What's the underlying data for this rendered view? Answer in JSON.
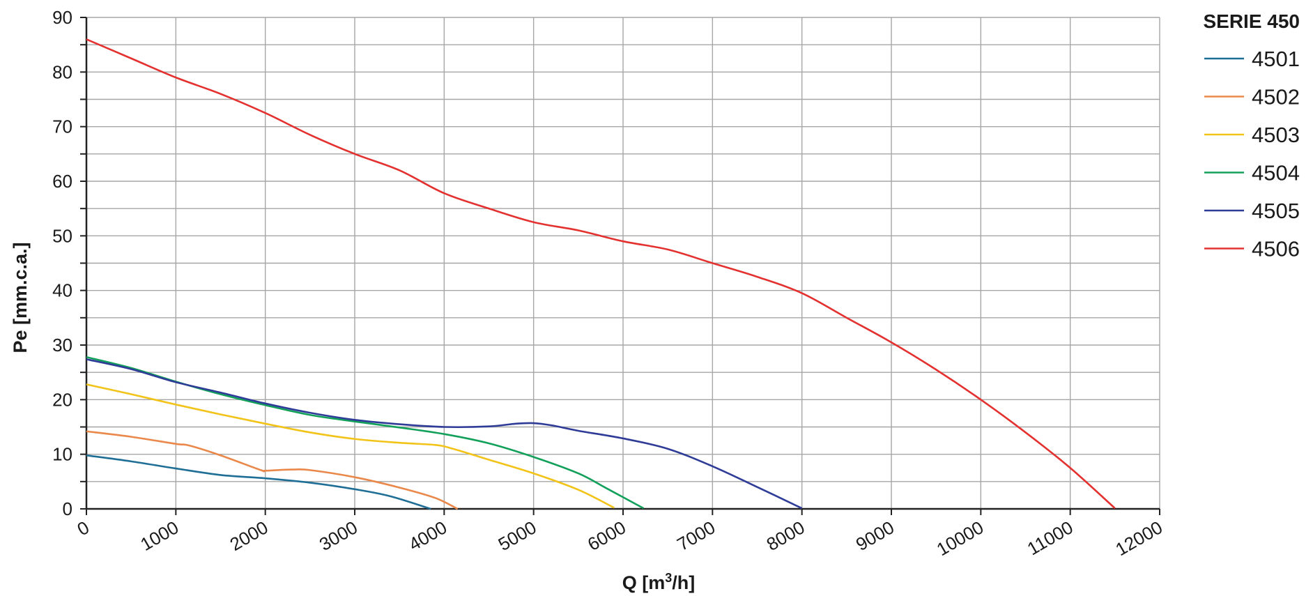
{
  "chart_data": {
    "type": "line",
    "title": "",
    "xlabel": "Q [m³/h]",
    "ylabel": "Pe [mm.c.a.]",
    "xlim": [
      0,
      12000
    ],
    "ylim": [
      0,
      90
    ],
    "x_ticks": [
      "0",
      "1000",
      "2000",
      "3000",
      "4000",
      "5000",
      "6000",
      "7000",
      "8000",
      "9000",
      "10000",
      "11000",
      "12000"
    ],
    "y_ticks": [
      "0",
      "10",
      "20",
      "30",
      "40",
      "50",
      "60",
      "70",
      "80",
      "90"
    ],
    "grid": true,
    "legend": {
      "title": "SERIE 450",
      "position": "right"
    },
    "series": [
      {
        "name": "4501",
        "color": "#1f6e96",
        "points": [
          [
            0,
            9.8
          ],
          [
            500,
            8.7
          ],
          [
            1000,
            7.4
          ],
          [
            1500,
            6.2
          ],
          [
            2000,
            5.6
          ],
          [
            2500,
            4.8
          ],
          [
            3000,
            3.6
          ],
          [
            3400,
            2.3
          ],
          [
            3850,
            0
          ]
        ]
      },
      {
        "name": "4502",
        "color": "#e9884a",
        "points": [
          [
            0,
            14.2
          ],
          [
            500,
            13.2
          ],
          [
            1000,
            11.9
          ],
          [
            1150,
            11.6
          ],
          [
            1500,
            9.8
          ],
          [
            1950,
            7.1
          ],
          [
            2000,
            7.0
          ],
          [
            2300,
            7.2
          ],
          [
            2500,
            7.1
          ],
          [
            3000,
            5.8
          ],
          [
            3500,
            3.9
          ],
          [
            3900,
            2.0
          ],
          [
            4150,
            0
          ]
        ]
      },
      {
        "name": "4503",
        "color": "#f2c318",
        "points": [
          [
            0,
            22.8
          ],
          [
            500,
            21.0
          ],
          [
            1000,
            19.1
          ],
          [
            1500,
            17.3
          ],
          [
            2000,
            15.6
          ],
          [
            2500,
            14.0
          ],
          [
            3000,
            12.8
          ],
          [
            3500,
            12.1
          ],
          [
            3900,
            11.7
          ],
          [
            4100,
            11.0
          ],
          [
            4500,
            9.0
          ],
          [
            5000,
            6.5
          ],
          [
            5500,
            3.5
          ],
          [
            5900,
            0.2
          ]
        ]
      },
      {
        "name": "4504",
        "color": "#12a05a",
        "points": [
          [
            0,
            27.8
          ],
          [
            500,
            25.8
          ],
          [
            1000,
            23.3
          ],
          [
            1500,
            21.0
          ],
          [
            2000,
            19.0
          ],
          [
            2500,
            17.2
          ],
          [
            3000,
            16.0
          ],
          [
            3500,
            14.9
          ],
          [
            4000,
            13.7
          ],
          [
            4500,
            12.0
          ],
          [
            5000,
            9.5
          ],
          [
            5500,
            6.5
          ],
          [
            5800,
            3.9
          ],
          [
            6230,
            0.1
          ]
        ]
      },
      {
        "name": "4505",
        "color": "#2f3c97",
        "points": [
          [
            0,
            27.4
          ],
          [
            500,
            25.6
          ],
          [
            1000,
            23.2
          ],
          [
            1500,
            21.3
          ],
          [
            2000,
            19.3
          ],
          [
            2500,
            17.6
          ],
          [
            3000,
            16.3
          ],
          [
            3500,
            15.5
          ],
          [
            4000,
            15.0
          ],
          [
            4500,
            15.1
          ],
          [
            4800,
            15.6
          ],
          [
            5000,
            15.7
          ],
          [
            5200,
            15.3
          ],
          [
            5500,
            14.3
          ],
          [
            6000,
            12.9
          ],
          [
            6500,
            11.0
          ],
          [
            7000,
            7.8
          ],
          [
            7500,
            4.0
          ],
          [
            8000,
            0.1
          ]
        ]
      },
      {
        "name": "4506",
        "color": "#e33130",
        "points": [
          [
            0,
            86.0
          ],
          [
            500,
            82.5
          ],
          [
            1000,
            79.0
          ],
          [
            1500,
            76.0
          ],
          [
            2000,
            72.5
          ],
          [
            2500,
            68.5
          ],
          [
            3000,
            65.0
          ],
          [
            3500,
            62.0
          ],
          [
            4000,
            57.8
          ],
          [
            4500,
            55.0
          ],
          [
            5000,
            52.5
          ],
          [
            5500,
            51.0
          ],
          [
            6000,
            49.0
          ],
          [
            6500,
            47.5
          ],
          [
            7000,
            45.0
          ],
          [
            7500,
            42.5
          ],
          [
            8000,
            39.5
          ],
          [
            8500,
            35.0
          ],
          [
            9000,
            30.5
          ],
          [
            9500,
            25.5
          ],
          [
            10000,
            20.0
          ],
          [
            10500,
            14.0
          ],
          [
            11000,
            7.5
          ],
          [
            11500,
            0.1
          ]
        ]
      }
    ]
  }
}
